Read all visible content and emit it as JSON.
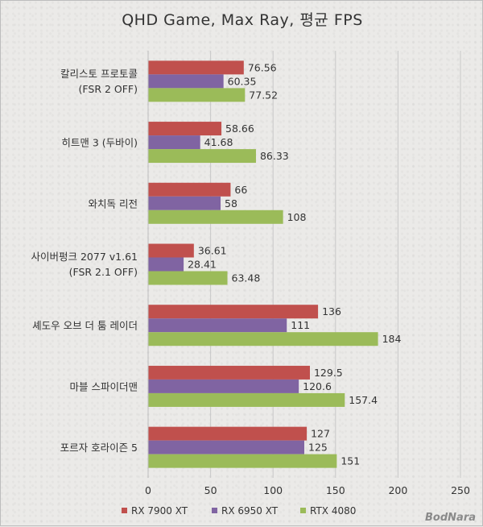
{
  "chart_data": {
    "type": "bar",
    "orientation": "horizontal",
    "title": "QHD Game, Max Ray, 평균 FPS",
    "categories": [
      [
        "칼리스토 프로토콜",
        "(FSR 2 OFF)"
      ],
      [
        "히트맨 3 (두바이)"
      ],
      [
        "와치독 리전"
      ],
      [
        "사이버펑크 2077 v1.61",
        "(FSR 2.1 OFF)"
      ],
      [
        "셰도우 오브 더 툼 레이더"
      ],
      [
        "마블 스파이더맨"
      ],
      [
        "포르자 호라이즌 5"
      ]
    ],
    "series": [
      {
        "name": "RX 7900 XT",
        "color": "#c0504d",
        "values": [
          76.56,
          58.66,
          66,
          36.61,
          136,
          129.5,
          127
        ],
        "labels": [
          "76.56",
          "58.66",
          "66",
          "36.61",
          "136",
          "129.5",
          "127"
        ]
      },
      {
        "name": "RX 6950 XT",
        "color": "#8064a2",
        "values": [
          60.35,
          41.68,
          58,
          28.41,
          111,
          120.6,
          125
        ],
        "labels": [
          "60.35",
          "41.68",
          "58",
          "28.41",
          "111",
          "120.6",
          "125"
        ]
      },
      {
        "name": "RTX 4080",
        "color": "#9bbb59",
        "values": [
          77.52,
          86.33,
          108,
          63.48,
          184,
          157.4,
          151
        ],
        "labels": [
          "77.52",
          "86.33",
          "108",
          "63.48",
          "184",
          "157.4",
          "151"
        ]
      }
    ],
    "xlim": [
      0,
      250
    ],
    "ticks": [
      "0",
      "50",
      "100",
      "150",
      "200",
      "250"
    ],
    "grid": true,
    "legend_position": "bottom"
  },
  "watermark": "BodNara"
}
